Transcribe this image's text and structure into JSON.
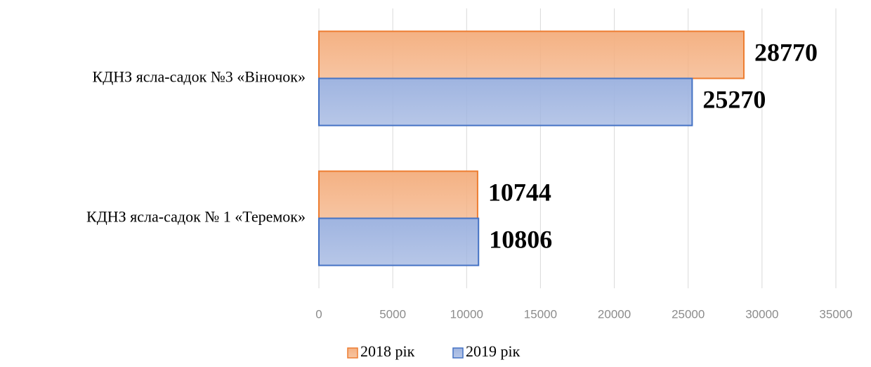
{
  "chart_data": {
    "type": "barh",
    "categories": [
      "КДНЗ ясла-садок №3 «Віночок»",
      "КДНЗ ясла-садок № 1 «Теремок»"
    ],
    "series": [
      {
        "name": "2018 рік",
        "color": "#f4b183",
        "edge_color": "#ed7d31",
        "values": [
          28770,
          10744
        ]
      },
      {
        "name": "2019 рік",
        "color": "#9fb4e0",
        "edge_color": "#4472c4",
        "values": [
          25270,
          10806
        ]
      }
    ],
    "xlim": [
      0,
      35000
    ],
    "xticks": [
      0,
      5000,
      10000,
      15000,
      20000,
      25000,
      30000,
      35000
    ],
    "grid": true,
    "legend": "bottom"
  }
}
